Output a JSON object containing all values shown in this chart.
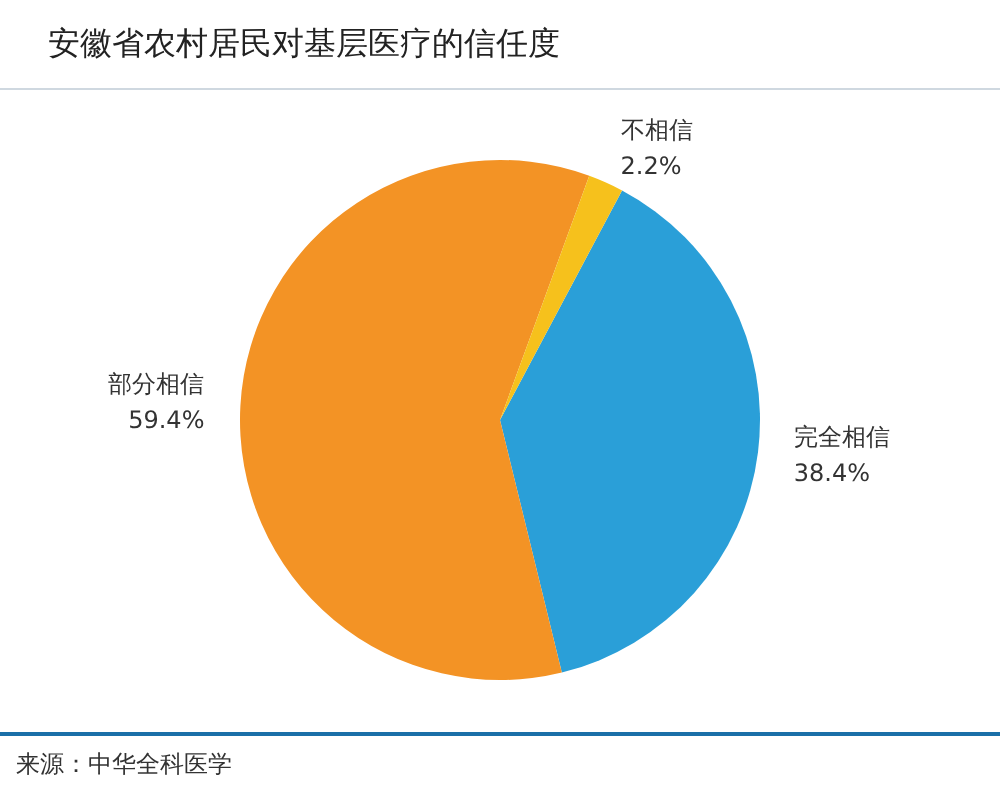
{
  "chart_data": {
    "type": "pie",
    "title": "安徽省农村居民对基层医疗的信任度",
    "categories": [
      "完全相信",
      "部分相信",
      "不相信"
    ],
    "values": [
      38.4,
      59.4,
      2.2
    ],
    "value_labels": [
      "38.4%",
      "59.4%",
      "2.2%"
    ],
    "colors": [
      "#2a9fd8",
      "#f39325",
      "#f6c11c"
    ],
    "annotations": [
      "来源：中华全科医学"
    ]
  }
}
